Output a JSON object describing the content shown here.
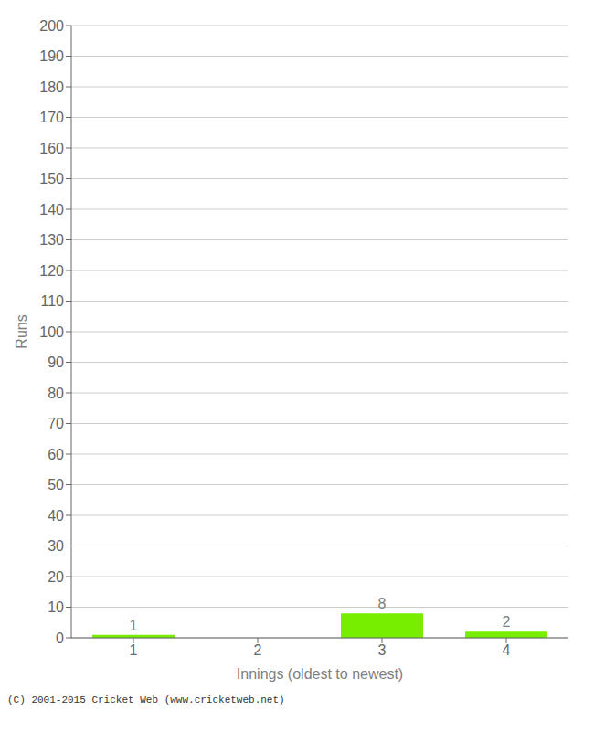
{
  "chart_data": {
    "type": "bar",
    "categories": [
      1,
      2,
      3,
      4
    ],
    "values": [
      1,
      0,
      8,
      2
    ],
    "color": "#77ee00",
    "ylabel": "Runs",
    "xlabel": "Innings (oldest to newest)",
    "ylim": [
      0,
      200
    ],
    "yticks": [
      0,
      10,
      20,
      30,
      40,
      50,
      60,
      70,
      80,
      90,
      100,
      110,
      120,
      130,
      140,
      150,
      160,
      170,
      180,
      190,
      200
    ],
    "grid": true,
    "data_labels": true,
    "annotations": [
      "(C) 2001-2015 Cricket Web (www.cricketweb.net)"
    ]
  }
}
